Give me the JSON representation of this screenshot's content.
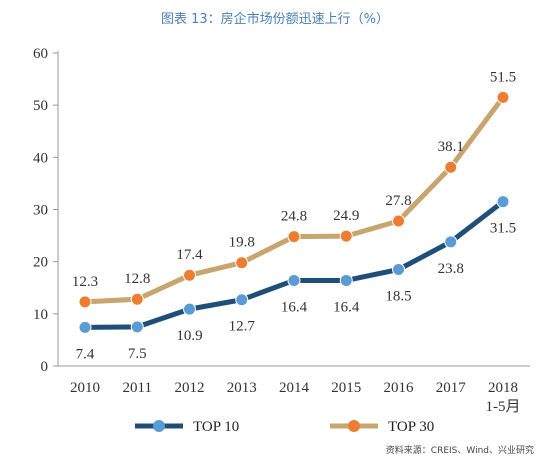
{
  "title": "图表 13：房企市场份额迅速上行（%）",
  "source": "资料来源：CREIS、Wind、兴业研究",
  "colors": {
    "top10": "#1f4e79",
    "top10_marker": "#5b9bd5",
    "top30": "#c8a46e",
    "top30_marker": "#ed7d31",
    "title": "#4a7fb5"
  },
  "chart_data": {
    "type": "line",
    "title": "图表 13：房企市场份额迅速上行（%）",
    "categories": [
      "2010",
      "2011",
      "2012",
      "2013",
      "2014",
      "2015",
      "2016",
      "2017",
      "2018 1-5月"
    ],
    "category_lines": [
      [
        "2010"
      ],
      [
        "2011"
      ],
      [
        "2012"
      ],
      [
        "2013"
      ],
      [
        "2014"
      ],
      [
        "2015"
      ],
      [
        "2016"
      ],
      [
        "2017"
      ],
      [
        "2018",
        "1-5月"
      ]
    ],
    "ylim": [
      0,
      60
    ],
    "yticks": [
      "0",
      "10",
      "20",
      "30",
      "40",
      "50",
      "60"
    ],
    "grid": false,
    "legend_position": "bottom",
    "series": [
      {
        "name": "TOP 10",
        "values": [
          7.4,
          7.5,
          10.9,
          12.7,
          16.4,
          16.4,
          18.5,
          23.8,
          31.5
        ],
        "labels": [
          "7.4",
          "7.5",
          "10.9",
          "12.7",
          "16.4",
          "16.4",
          "18.5",
          "23.8",
          "31.5"
        ]
      },
      {
        "name": "TOP 30",
        "values": [
          12.3,
          12.8,
          17.4,
          19.8,
          24.8,
          24.9,
          27.8,
          38.1,
          51.5
        ],
        "labels": [
          "12.3",
          "12.8",
          "17.4",
          "19.8",
          "24.8",
          "24.9",
          "27.8",
          "38.1",
          "51.5"
        ]
      }
    ]
  }
}
